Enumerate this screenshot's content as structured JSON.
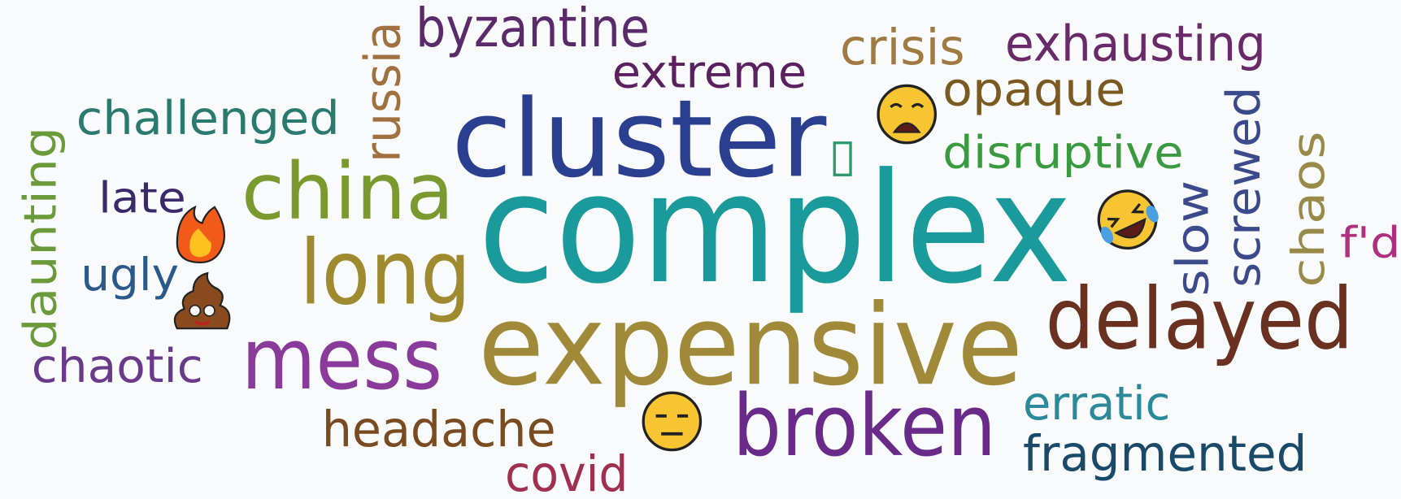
{
  "words": [
    "byzantine",
    "russia",
    "extreme",
    "crisis",
    "exhausting",
    "opaque",
    "challenged",
    "cluster",
    "disruptive",
    "screwed",
    "daunting",
    "late",
    "china",
    "complex",
    "slow",
    "chaos",
    "f'd",
    "long",
    "ugly",
    "delayed",
    "expensive",
    "mess",
    "chaotic",
    "erratic",
    "broken",
    "headache",
    "fragmented",
    "covid"
  ]
}
